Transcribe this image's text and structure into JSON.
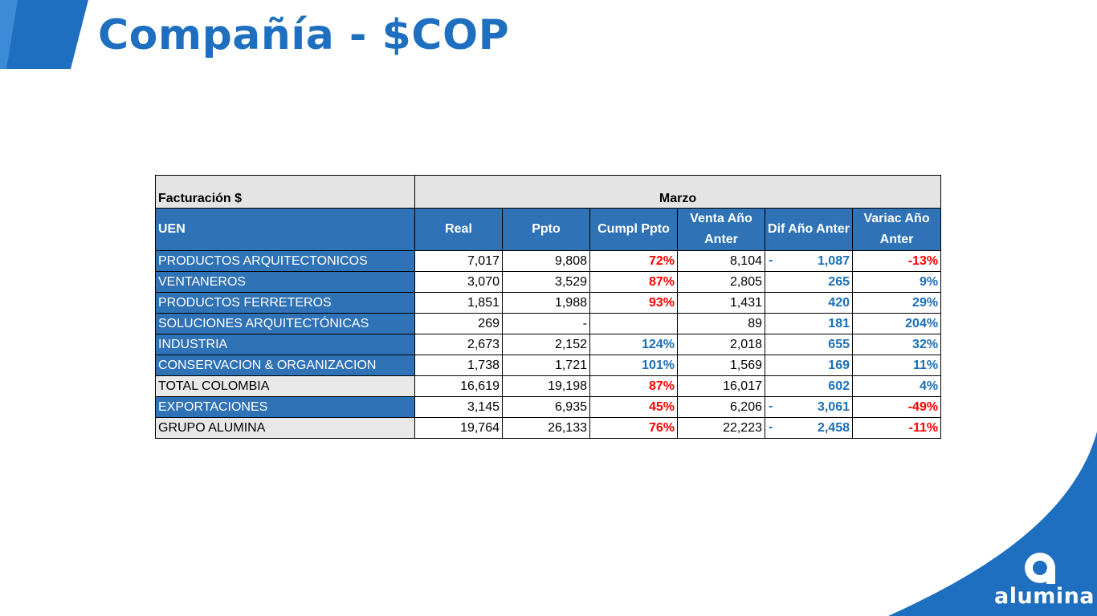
{
  "page": {
    "title": "Compañía - $COP"
  },
  "brand": {
    "name": "alumina",
    "primary_color": "#1e6fc0",
    "header_blue": "#2f72b5",
    "negative_color": "#ff0000",
    "positive_color": "#1a6fb8"
  },
  "table": {
    "corner_label": "Facturación $",
    "period_label": "Marzo",
    "columns": {
      "uen": "UEN",
      "real": "Real",
      "ppto": "Ppto",
      "cumpl": "Cumpl  Ppto",
      "venta_anter": "Venta Año Anter",
      "dif_anter": "Dif Año Anter",
      "variac_anter": "Variac Año Anter"
    },
    "rows": [
      {
        "uen": "PRODUCTOS ARQUITECTONICOS",
        "real": "7,017",
        "ppto": "9,808",
        "cumpl": "72%",
        "venta": "8,104",
        "dif_sign": "-",
        "dif": "1,087",
        "variac": "-13%"
      },
      {
        "uen": "VENTANEROS",
        "real": "3,070",
        "ppto": "3,529",
        "cumpl": "87%",
        "venta": "2,805",
        "dif_sign": "",
        "dif": "265",
        "variac": "9%"
      },
      {
        "uen": "PRODUCTOS FERRETEROS",
        "real": "1,851",
        "ppto": "1,988",
        "cumpl": "93%",
        "venta": "1,431",
        "dif_sign": "",
        "dif": "420",
        "variac": "29%"
      },
      {
        "uen": "SOLUCIONES ARQUITECTÓNICAS",
        "real": "269",
        "ppto": "-",
        "cumpl": "",
        "venta": "89",
        "dif_sign": "",
        "dif": "181",
        "variac": "204%"
      },
      {
        "uen": "INDUSTRIA",
        "real": "2,673",
        "ppto": "2,152",
        "cumpl": "124%",
        "venta": "2,018",
        "dif_sign": "",
        "dif": "655",
        "variac": "32%"
      },
      {
        "uen": "CONSERVACION & ORGANIZACION",
        "real": "1,738",
        "ppto": "1,721",
        "cumpl": "101%",
        "venta": "1,569",
        "dif_sign": "",
        "dif": "169",
        "variac": "11%"
      },
      {
        "uen": "TOTAL COLOMBIA",
        "real": "16,619",
        "ppto": "19,198",
        "cumpl": "87%",
        "venta": "16,017",
        "dif_sign": "",
        "dif": "602",
        "variac": "4%"
      },
      {
        "uen": "EXPORTACIONES",
        "real": "3,145",
        "ppto": "6,935",
        "cumpl": "45%",
        "venta": "6,206",
        "dif_sign": "-",
        "dif": "3,061",
        "variac": "-49%"
      },
      {
        "uen": "GRUPO ALUMINA",
        "real": "19,764",
        "ppto": "26,133",
        "cumpl": "76%",
        "venta": "22,223",
        "dif_sign": "-",
        "dif": "2,458",
        "variac": "-11%"
      }
    ]
  }
}
